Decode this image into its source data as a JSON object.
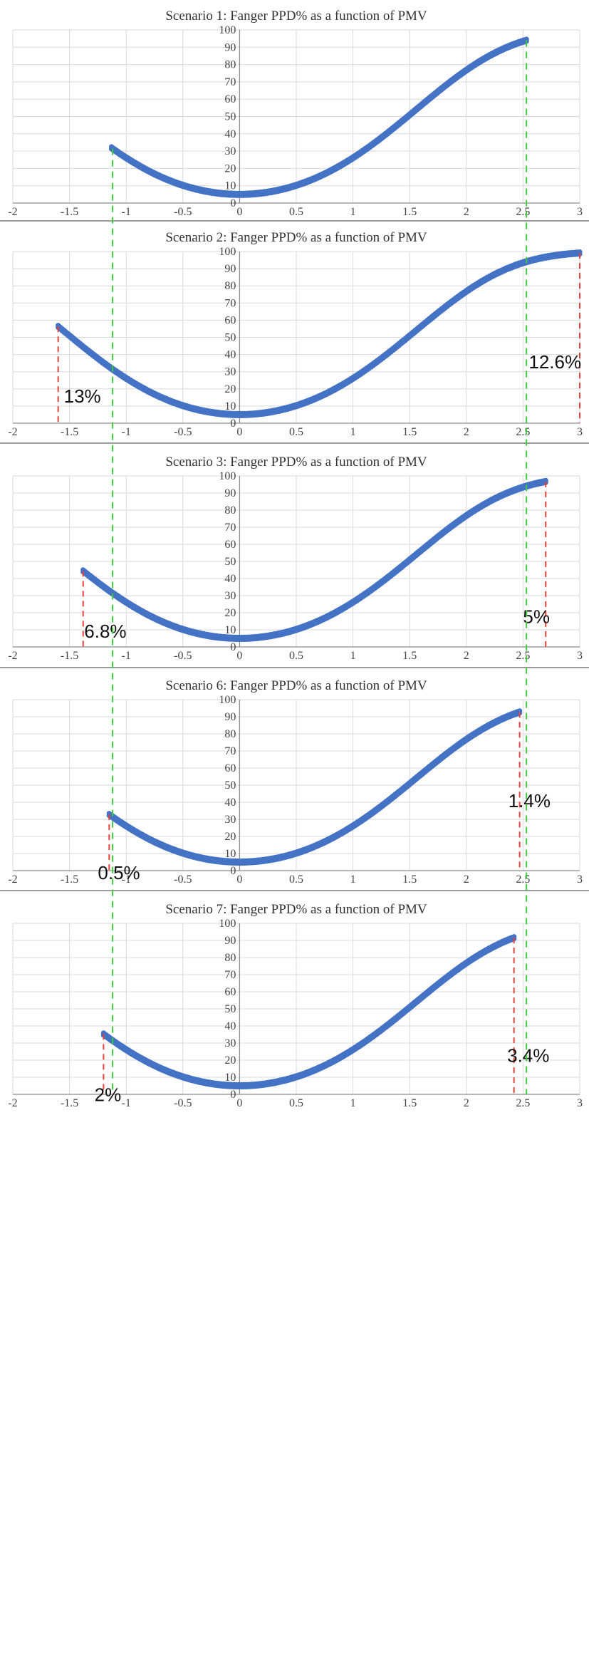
{
  "chart_data": [
    {
      "type": "scatter",
      "title": "Scenario 1: Fanger PPD% as a function of PMV",
      "xlabel": "",
      "ylabel": "",
      "xlim": [
        -2,
        3
      ],
      "ylim": [
        0,
        100
      ],
      "x_ticks": [
        "-2",
        "-1.5",
        "-1",
        "-0.5",
        "0",
        "0.5",
        "1",
        "1.5",
        "2",
        "2.5",
        "3"
      ],
      "y_ticks": [
        "0",
        "10",
        "20",
        "30",
        "40",
        "50",
        "60",
        "70",
        "80",
        "90",
        "100"
      ],
      "grid": true,
      "series_color": "#4472c4",
      "pmv_range": [
        -1.13,
        2.53
      ],
      "reference_lines": [],
      "annotations": []
    },
    {
      "type": "scatter",
      "title": "Scenario 2: Fanger PPD% as a function of PMV",
      "xlabel": "",
      "ylabel": "",
      "xlim": [
        -2,
        3
      ],
      "ylim": [
        0,
        100
      ],
      "x_ticks": [
        "-2",
        "-1.5",
        "-1",
        "-0.5",
        "0",
        "0.5",
        "1",
        "1.5",
        "2",
        "2.5",
        "3"
      ],
      "y_ticks": [
        "0",
        "10",
        "20",
        "30",
        "40",
        "50",
        "60",
        "70",
        "80",
        "90",
        "100"
      ],
      "grid": true,
      "series_color": "#4472c4",
      "pmv_range": [
        -1.6,
        3.0
      ],
      "reference_lines": [
        {
          "x": -1.6,
          "color": "#e8413a"
        },
        {
          "x": 3.0,
          "color": "#e8413a"
        }
      ],
      "annotations": [
        {
          "text": "13%",
          "x": -1.55,
          "y": 12
        },
        {
          "text": "12.6%",
          "x": 2.55,
          "y": 32
        }
      ]
    },
    {
      "type": "scatter",
      "title": "Scenario 3: Fanger PPD% as a function of PMV",
      "xlabel": "",
      "ylabel": "",
      "xlim": [
        -2,
        3
      ],
      "ylim": [
        0,
        100
      ],
      "x_ticks": [
        "-2",
        "-1.5",
        "-1",
        "-0.5",
        "0",
        "0.5",
        "1",
        "1.5",
        "2",
        "2.5",
        "3"
      ],
      "y_ticks": [
        "0",
        "10",
        "20",
        "30",
        "40",
        "50",
        "60",
        "70",
        "80",
        "90",
        "100"
      ],
      "grid": true,
      "series_color": "#4472c4",
      "pmv_range": [
        -1.38,
        2.7
      ],
      "reference_lines": [
        {
          "x": -1.38,
          "color": "#e8413a"
        },
        {
          "x": 2.7,
          "color": "#e8413a"
        }
      ],
      "annotations": [
        {
          "text": "6.8%",
          "x": -1.37,
          "y": 5.5
        },
        {
          "text": "5%",
          "x": 2.5,
          "y": 14
        }
      ]
    },
    {
      "type": "scatter",
      "title": "Scenario 6: Fanger PPD% as a function of PMV",
      "xlabel": "",
      "ylabel": "",
      "xlim": [
        -2,
        3
      ],
      "ylim": [
        0,
        100
      ],
      "x_ticks": [
        "-2",
        "-1.5",
        "-1",
        "-0.5",
        "0",
        "0.5",
        "1",
        "1.5",
        "2",
        "2.5",
        "3"
      ],
      "y_ticks": [
        "0",
        "10",
        "20",
        "30",
        "40",
        "50",
        "60",
        "70",
        "80",
        "90",
        "100"
      ],
      "grid": true,
      "series_color": "#4472c4",
      "pmv_range": [
        -1.15,
        2.47
      ],
      "reference_lines": [
        {
          "x": -1.15,
          "color": "#e8413a"
        },
        {
          "x": 2.47,
          "color": "#e8413a"
        }
      ],
      "annotations": [
        {
          "text": "0.5%",
          "x": -1.25,
          "y": -5
        },
        {
          "text": "1.4%",
          "x": 2.37,
          "y": 37
        }
      ]
    },
    {
      "type": "scatter",
      "title": "Scenario 7: Fanger PPD% as a function of PMV",
      "xlabel": "",
      "ylabel": "",
      "xlim": [
        -2,
        3
      ],
      "ylim": [
        0,
        100
      ],
      "x_ticks": [
        "-2",
        "-1.5",
        "-1",
        "-0.5",
        "0",
        "0.5",
        "1",
        "1.5",
        "2",
        "2.5",
        "3"
      ],
      "y_ticks": [
        "0",
        "10",
        "20",
        "30",
        "40",
        "50",
        "60",
        "70",
        "80",
        "90",
        "100"
      ],
      "grid": true,
      "series_color": "#4472c4",
      "pmv_range": [
        -1.2,
        2.42
      ],
      "reference_lines": [
        {
          "x": -1.2,
          "color": "#e8413a"
        },
        {
          "x": 2.42,
          "color": "#e8413a"
        }
      ],
      "annotations": [
        {
          "text": "2%",
          "x": -1.28,
          "y": -4
        },
        {
          "text": "3.4%",
          "x": 2.36,
          "y": 19
        }
      ]
    }
  ],
  "shared_reference_lines": [
    {
      "x": -1.12,
      "color": "#3ec93e"
    },
    {
      "x": 2.53,
      "color": "#3ec93e"
    }
  ]
}
